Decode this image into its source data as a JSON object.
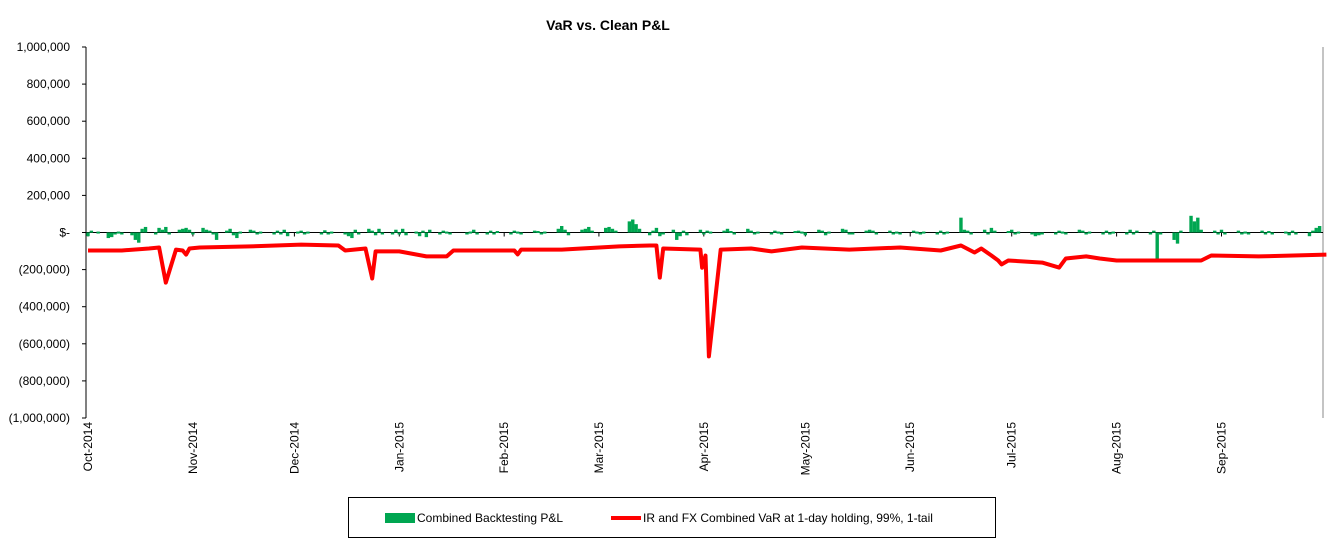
{
  "chart_data": {
    "type": "bar+line",
    "title": "VaR vs. Clean P&L",
    "xlabel": "",
    "ylabel": "",
    "ylim": [
      -1000000,
      1000000
    ],
    "yticks": [
      1000000,
      800000,
      600000,
      400000,
      200000,
      0,
      -200000,
      -400000,
      -600000,
      -800000,
      -1000000
    ],
    "ytick_labels": [
      "1,000,000",
      "800,000",
      "600,000",
      "400,000",
      "200,000",
      "$-",
      "(200,000)",
      "(400,000)",
      "(600,000)",
      "(800,000)",
      "(1,000,000)"
    ],
    "x_unit": "days since 2014-10-01",
    "xlim": [
      0,
      365
    ],
    "xticks": [
      0,
      31,
      61,
      92,
      123,
      151,
      182,
      212,
      243,
      273,
      304,
      335
    ],
    "xtick_labels": [
      "Oct-2014",
      "Nov-2014",
      "Dec-2014",
      "Jan-2015",
      "Feb-2015",
      "Mar-2015",
      "Apr-2015",
      "May-2015",
      "Jun-2015",
      "Jul-2015",
      "Aug-2015",
      "Sep-2015"
    ],
    "legend_position": "bottom",
    "colors": {
      "pnl": "#00a651",
      "var": "#ff0000"
    },
    "series": [
      {
        "name": "Combined Backtesting P&L",
        "kind": "bar",
        "points": [
          [
            0,
            -20000
          ],
          [
            1,
            10000
          ],
          [
            3,
            5000
          ],
          [
            6,
            -30000
          ],
          [
            7,
            -25000
          ],
          [
            8,
            -10000
          ],
          [
            9,
            5000
          ],
          [
            10,
            -5000
          ],
          [
            13,
            -15000
          ],
          [
            14,
            -40000
          ],
          [
            15,
            -55000
          ],
          [
            16,
            20000
          ],
          [
            17,
            30000
          ],
          [
            20,
            -10000
          ],
          [
            21,
            25000
          ],
          [
            22,
            15000
          ],
          [
            23,
            30000
          ],
          [
            24,
            -5000
          ],
          [
            27,
            15000
          ],
          [
            28,
            20000
          ],
          [
            29,
            25000
          ],
          [
            30,
            15000
          ],
          [
            31,
            -10000
          ],
          [
            34,
            25000
          ],
          [
            35,
            15000
          ],
          [
            36,
            10000
          ],
          [
            37,
            -10000
          ],
          [
            38,
            -40000
          ],
          [
            41,
            10000
          ],
          [
            42,
            20000
          ],
          [
            43,
            -15000
          ],
          [
            44,
            -30000
          ],
          [
            45,
            5000
          ],
          [
            48,
            15000
          ],
          [
            49,
            10000
          ],
          [
            50,
            -10000
          ],
          [
            51,
            5000
          ],
          [
            55,
            -5000
          ],
          [
            56,
            10000
          ],
          [
            57,
            -8000
          ],
          [
            58,
            15000
          ],
          [
            59,
            -20000
          ],
          [
            62,
            5000
          ],
          [
            63,
            10000
          ],
          [
            64,
            -5000
          ],
          [
            65,
            5000
          ],
          [
            69,
            -10000
          ],
          [
            70,
            12000
          ],
          [
            71,
            -8000
          ],
          [
            72,
            5000
          ],
          [
            76,
            -10000
          ],
          [
            77,
            -20000
          ],
          [
            78,
            -30000
          ],
          [
            79,
            15000
          ],
          [
            80,
            -10000
          ],
          [
            83,
            20000
          ],
          [
            84,
            10000
          ],
          [
            85,
            -15000
          ],
          [
            86,
            20000
          ],
          [
            87,
            -5000
          ],
          [
            90,
            -10000
          ],
          [
            91,
            15000
          ],
          [
            92,
            -10000
          ],
          [
            93,
            20000
          ],
          [
            94,
            -15000
          ],
          [
            97,
            5000
          ],
          [
            98,
            -20000
          ],
          [
            99,
            10000
          ],
          [
            100,
            -25000
          ],
          [
            101,
            15000
          ],
          [
            104,
            -8000
          ],
          [
            105,
            10000
          ],
          [
            106,
            5000
          ],
          [
            107,
            -10000
          ],
          [
            112,
            -10000
          ],
          [
            113,
            5000
          ],
          [
            114,
            15000
          ],
          [
            115,
            -10000
          ],
          [
            118,
            -5000
          ],
          [
            119,
            10000
          ],
          [
            120,
            -5000
          ],
          [
            121,
            8000
          ],
          [
            125,
            -8000
          ],
          [
            126,
            10000
          ],
          [
            127,
            5000
          ],
          [
            128,
            -5000
          ],
          [
            132,
            10000
          ],
          [
            133,
            8000
          ],
          [
            134,
            -10000
          ],
          [
            135,
            5000
          ],
          [
            139,
            20000
          ],
          [
            140,
            35000
          ],
          [
            141,
            15000
          ],
          [
            142,
            -15000
          ],
          [
            146,
            15000
          ],
          [
            147,
            20000
          ],
          [
            148,
            30000
          ],
          [
            149,
            10000
          ],
          [
            153,
            25000
          ],
          [
            154,
            30000
          ],
          [
            155,
            20000
          ],
          [
            156,
            10000
          ],
          [
            160,
            60000
          ],
          [
            161,
            70000
          ],
          [
            162,
            45000
          ],
          [
            163,
            20000
          ],
          [
            166,
            -15000
          ],
          [
            167,
            10000
          ],
          [
            168,
            25000
          ],
          [
            169,
            -20000
          ],
          [
            170,
            -10000
          ],
          [
            173,
            15000
          ],
          [
            174,
            -40000
          ],
          [
            175,
            -20000
          ],
          [
            176,
            10000
          ],
          [
            177,
            -15000
          ],
          [
            181,
            15000
          ],
          [
            182,
            -10000
          ],
          [
            183,
            10000
          ],
          [
            184,
            5000
          ],
          [
            188,
            10000
          ],
          [
            189,
            20000
          ],
          [
            190,
            8000
          ],
          [
            191,
            -5000
          ],
          [
            195,
            20000
          ],
          [
            196,
            10000
          ],
          [
            197,
            -10000
          ],
          [
            198,
            5000
          ],
          [
            202,
            -5000
          ],
          [
            203,
            10000
          ],
          [
            204,
            5000
          ],
          [
            205,
            -10000
          ],
          [
            209,
            8000
          ],
          [
            210,
            10000
          ],
          [
            211,
            5000
          ],
          [
            212,
            -15000
          ],
          [
            216,
            15000
          ],
          [
            217,
            10000
          ],
          [
            218,
            -15000
          ],
          [
            219,
            5000
          ],
          [
            223,
            20000
          ],
          [
            224,
            15000
          ],
          [
            225,
            -10000
          ],
          [
            226,
            -5000
          ],
          [
            230,
            10000
          ],
          [
            231,
            15000
          ],
          [
            232,
            10000
          ],
          [
            233,
            -5000
          ],
          [
            237,
            10000
          ],
          [
            238,
            -10000
          ],
          [
            239,
            5000
          ],
          [
            240,
            -8000
          ],
          [
            244,
            10000
          ],
          [
            245,
            5000
          ],
          [
            246,
            -10000
          ],
          [
            247,
            5000
          ],
          [
            251,
            -10000
          ],
          [
            252,
            10000
          ],
          [
            253,
            -5000
          ],
          [
            254,
            5000
          ],
          [
            258,
            80000
          ],
          [
            259,
            15000
          ],
          [
            260,
            10000
          ],
          [
            261,
            -10000
          ],
          [
            265,
            15000
          ],
          [
            266,
            -5000
          ],
          [
            267,
            25000
          ],
          [
            268,
            10000
          ],
          [
            272,
            8000
          ],
          [
            273,
            15000
          ],
          [
            274,
            -10000
          ],
          [
            275,
            5000
          ],
          [
            279,
            -10000
          ],
          [
            280,
            -20000
          ],
          [
            281,
            -15000
          ],
          [
            282,
            -5000
          ],
          [
            286,
            -5000
          ],
          [
            287,
            10000
          ],
          [
            288,
            5000
          ],
          [
            289,
            -8000
          ],
          [
            293,
            15000
          ],
          [
            294,
            10000
          ],
          [
            295,
            -5000
          ],
          [
            296,
            5000
          ],
          [
            300,
            -5000
          ],
          [
            301,
            10000
          ],
          [
            302,
            -8000
          ],
          [
            303,
            5000
          ],
          [
            307,
            -10000
          ],
          [
            308,
            15000
          ],
          [
            309,
            -5000
          ],
          [
            310,
            10000
          ],
          [
            314,
            -5000
          ],
          [
            315,
            10000
          ],
          [
            316,
            -150000
          ],
          [
            317,
            -10000
          ],
          [
            321,
            -40000
          ],
          [
            322,
            -60000
          ],
          [
            323,
            10000
          ],
          [
            326,
            90000
          ],
          [
            327,
            60000
          ],
          [
            328,
            80000
          ],
          [
            329,
            15000
          ],
          [
            333,
            10000
          ],
          [
            334,
            -10000
          ],
          [
            335,
            15000
          ],
          [
            336,
            -5000
          ],
          [
            340,
            10000
          ],
          [
            341,
            -8000
          ],
          [
            342,
            5000
          ],
          [
            343,
            -5000
          ],
          [
            347,
            10000
          ],
          [
            348,
            -5000
          ],
          [
            349,
            8000
          ],
          [
            350,
            -10000
          ],
          [
            354,
            5000
          ],
          [
            355,
            -15000
          ],
          [
            356,
            10000
          ],
          [
            357,
            -5000
          ],
          [
            361,
            -20000
          ],
          [
            362,
            10000
          ],
          [
            363,
            25000
          ],
          [
            364,
            35000
          ]
        ]
      },
      {
        "name": "IR and FX Combined VaR at 1-day holding, 99%, 1-tail",
        "kind": "line",
        "points": [
          [
            0,
            -97000
          ],
          [
            10,
            -97000
          ],
          [
            18,
            -86000
          ],
          [
            21,
            -81000
          ],
          [
            23,
            -270000
          ],
          [
            26,
            -92000
          ],
          [
            28,
            -97000
          ],
          [
            29,
            -119000
          ],
          [
            30,
            -86000
          ],
          [
            33,
            -81000
          ],
          [
            48,
            -75000
          ],
          [
            63,
            -65000
          ],
          [
            74,
            -70000
          ],
          [
            76,
            -97000
          ],
          [
            82,
            -86000
          ],
          [
            84,
            -248000
          ],
          [
            85,
            -102000
          ],
          [
            92,
            -102000
          ],
          [
            100,
            -129000
          ],
          [
            106,
            -129000
          ],
          [
            108,
            -97000
          ],
          [
            126,
            -97000
          ],
          [
            127,
            -118000
          ],
          [
            128,
            -92000
          ],
          [
            140,
            -92000
          ],
          [
            157,
            -75000
          ],
          [
            166,
            -70000
          ],
          [
            168,
            -70000
          ],
          [
            169,
            -243000
          ],
          [
            170,
            -86000
          ],
          [
            181,
            -92000
          ],
          [
            181.5,
            -190000
          ],
          [
            182.5,
            -124000
          ],
          [
            183.5,
            -668000
          ],
          [
            187,
            -92000
          ],
          [
            196,
            -86000
          ],
          [
            202,
            -102000
          ],
          [
            211,
            -81000
          ],
          [
            225,
            -92000
          ],
          [
            240,
            -81000
          ],
          [
            252,
            -97000
          ],
          [
            258,
            -70000
          ],
          [
            262,
            -108000
          ],
          [
            264,
            -86000
          ],
          [
            267,
            -124000
          ],
          [
            269,
            -151000
          ],
          [
            270,
            -172000
          ],
          [
            272,
            -151000
          ],
          [
            282,
            -162000
          ],
          [
            287,
            -189000
          ],
          [
            289,
            -140000
          ],
          [
            295,
            -129000
          ],
          [
            299,
            -140000
          ],
          [
            304,
            -151000
          ],
          [
            317,
            -151000
          ],
          [
            329,
            -151000
          ],
          [
            332,
            -124000
          ],
          [
            346,
            -129000
          ],
          [
            366,
            -119000
          ]
        ]
      }
    ]
  }
}
